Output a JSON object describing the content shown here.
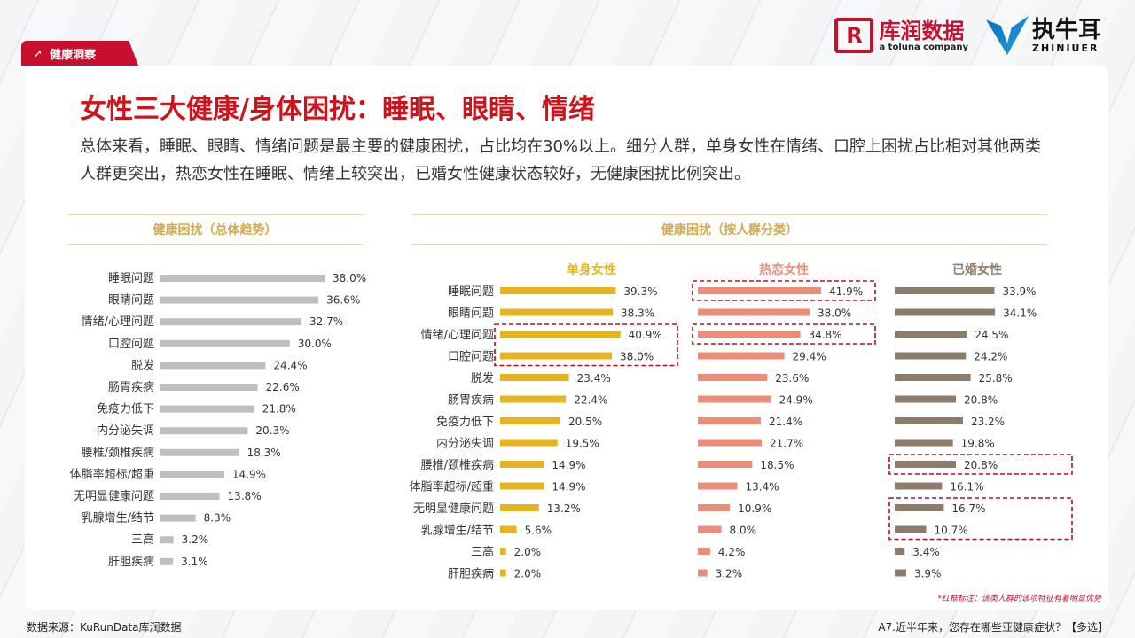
{
  "header": {
    "tag_label": "健康洞察",
    "logo_kurun_mark": "R",
    "logo_kurun_name": "库润数据",
    "logo_kurun_sub": "a toluna company",
    "logo_zhiniuer_name": "执牛耳",
    "logo_zhiniuer_sub": "ZHINIUER"
  },
  "title": "女性三大健康/身体困扰：睡眠、眼睛、情绪",
  "description": "总体来看，睡眠、眼睛、情绪问题是最主要的健康困扰，占比均在30%以上。细分人群，单身女性在情绪、口腔上困扰占比相对其他两类人群更突出，热恋女性在睡眠、情绪上较突出，已婚女性健康状态较好，无健康困扰比例突出。",
  "left_section_title": "健康困扰（总体趋势）",
  "right_section_title": "健康困扰（按人群分类）",
  "note": "*红框标注：该类人群的该项特征有着明显优势",
  "footer": {
    "source": "数据来源：KuRunData库润数据",
    "question": "A7.近半年来，您存在哪些亚健康症状？【多选】"
  },
  "colors": {
    "overall": "#bfbfbf",
    "single": "#e7b421",
    "dating": "#ec8d78",
    "married": "#8c7c6c",
    "highlight": "#b0101e",
    "header_gold": "#d4a94a"
  },
  "chart_data": [
    {
      "type": "bar",
      "orientation": "horizontal",
      "title": "健康困扰（总体趋势）",
      "categories": [
        "睡眠问题",
        "眼睛问题",
        "情绪/心理问题",
        "口腔问题",
        "脱发",
        "肠胃疾病",
        "免疫力低下",
        "内分泌失调",
        "腰椎/颈椎疾病",
        "体脂率超标/超重",
        "无明显健康问题",
        "乳腺增生/结节",
        "三高",
        "肝胆疾病"
      ],
      "values": [
        38.0,
        36.6,
        32.7,
        30.0,
        24.4,
        22.6,
        21.8,
        20.3,
        18.3,
        14.9,
        13.8,
        8.3,
        3.2,
        3.1
      ],
      "value_labels": [
        "38.0%",
        "36.6%",
        "32.7%",
        "30.0%",
        "24.4%",
        "22.6%",
        "21.8%",
        "20.3%",
        "18.3%",
        "14.9%",
        "13.8%",
        "8.3%",
        "3.2%",
        "3.1%"
      ],
      "unit": "%"
    },
    {
      "type": "bar",
      "orientation": "horizontal",
      "title": "健康困扰（按人群分类）",
      "categories": [
        "睡眠问题",
        "眼睛问题",
        "情绪/心理问题",
        "口腔问题",
        "脱发",
        "肠胃疾病",
        "免疫力低下",
        "内分泌失调",
        "腰椎/颈椎疾病",
        "体脂率超标/超重",
        "无明显健康问题",
        "乳腺增生/结节",
        "三高",
        "肝胆疾病"
      ],
      "series": [
        {
          "name": "单身女性",
          "values": [
            39.3,
            38.3,
            40.9,
            38.0,
            23.4,
            22.4,
            20.5,
            19.5,
            14.9,
            14.9,
            13.2,
            5.6,
            2.0,
            2.0
          ],
          "value_labels": [
            "39.3%",
            "38.3%",
            "40.9%",
            "38.0%",
            "23.4%",
            "22.4%",
            "20.5%",
            "19.5%",
            "14.9%",
            "14.9%",
            "13.2%",
            "5.6%",
            "2.0%",
            "2.0%"
          ],
          "highlighted": [
            "情绪/心理问题",
            "口腔问题"
          ]
        },
        {
          "name": "热恋女性",
          "values": [
            41.9,
            38.0,
            34.8,
            29.4,
            23.6,
            24.9,
            21.4,
            21.7,
            18.5,
            13.4,
            10.9,
            8.0,
            4.2,
            3.2
          ],
          "value_labels": [
            "41.9%",
            "38.0%",
            "34.8%",
            "29.4%",
            "23.6%",
            "24.9%",
            "21.4%",
            "21.7%",
            "18.5%",
            "13.4%",
            "10.9%",
            "8.0%",
            "4.2%",
            "3.2%"
          ],
          "highlighted": [
            "睡眠问题",
            "情绪/心理问题"
          ]
        },
        {
          "name": "已婚女性",
          "values": [
            33.9,
            34.1,
            24.5,
            24.2,
            25.8,
            20.8,
            23.2,
            19.8,
            20.8,
            16.1,
            16.7,
            10.7,
            3.4,
            3.9
          ],
          "value_labels": [
            "33.9%",
            "34.1%",
            "24.5%",
            "24.2%",
            "25.8%",
            "20.8%",
            "23.2%",
            "19.8%",
            "20.8%",
            "16.1%",
            "16.7%",
            "10.7%",
            "3.4%",
            "3.9%"
          ],
          "highlighted": [
            "腰椎/颈椎疾病",
            "无明显健康问题",
            "乳腺增生/结节"
          ]
        }
      ],
      "unit": "%"
    }
  ]
}
